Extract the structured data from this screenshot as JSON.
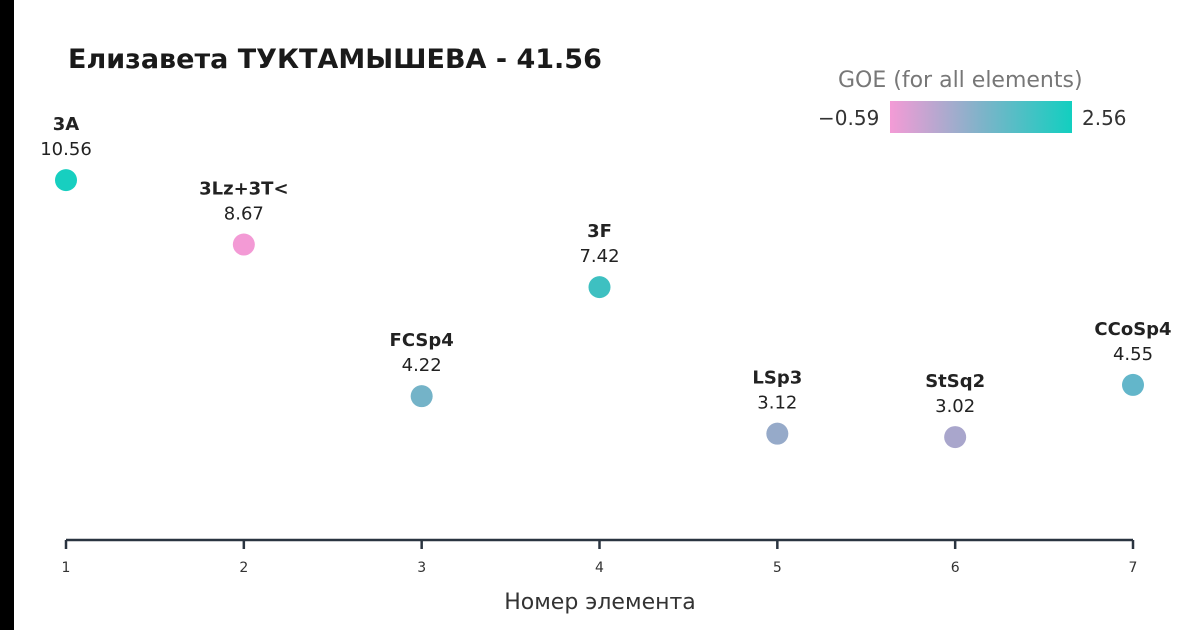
{
  "chart_data": {
    "type": "scatter",
    "title": "Елизавета ТУКТАМЫШЕВА - 41.56",
    "xlabel": "Номер элемента",
    "ylabel": "",
    "x": [
      1,
      2,
      3,
      4,
      5,
      6,
      7
    ],
    "values": [
      10.56,
      8.67,
      4.22,
      7.42,
      3.12,
      3.02,
      4.55
    ],
    "elements": [
      "3A",
      "3Lz+3T<",
      "FCSp4",
      "3F",
      "LSp3",
      "StSq2",
      "CCoSp4"
    ],
    "value_labels": [
      "10.56",
      "8.67",
      "4.22",
      "7.42",
      "3.12",
      "3.02",
      "4.55"
    ],
    "point_colors": [
      "#17cfc0",
      "#f39ad5",
      "#74b3c8",
      "#3ec0c1",
      "#96aac9",
      "#a9a6cc",
      "#63b6ca"
    ],
    "xticks": [
      "1",
      "2",
      "3",
      "4",
      "5",
      "6",
      "7"
    ],
    "xlim": [
      1,
      7
    ],
    "ylim": [
      0,
      11
    ],
    "grid": false,
    "colorbar": {
      "title": "GOE (for all elements)",
      "min_label": "−0.59",
      "max_label": "2.56",
      "min_color": "#f49bd6",
      "max_color": "#12cfc0",
      "placement": "top-right"
    }
  }
}
